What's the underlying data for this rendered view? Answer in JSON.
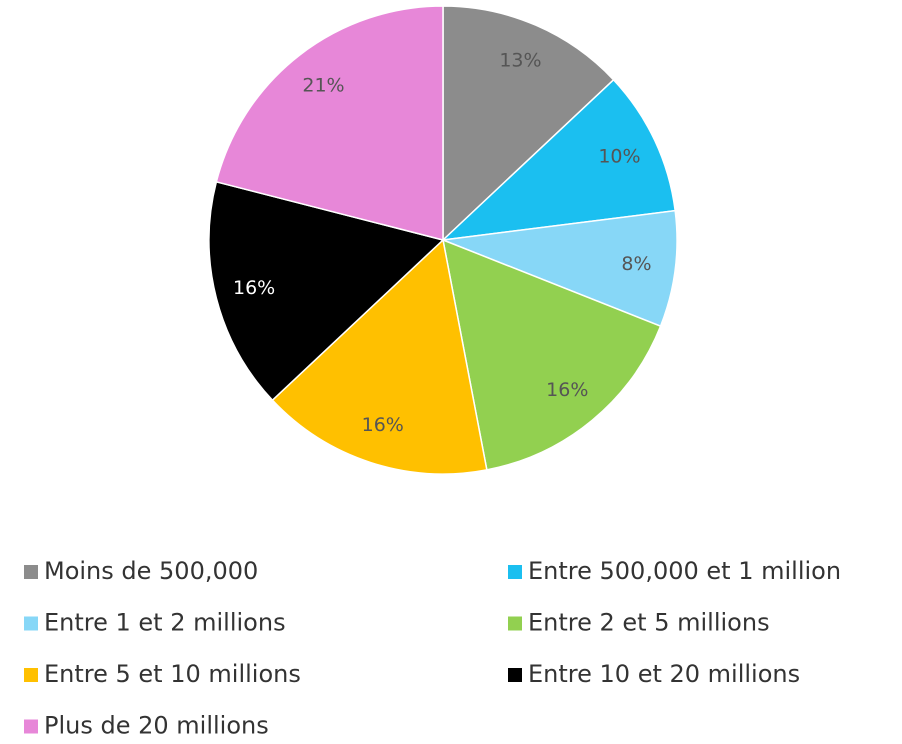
{
  "chart_data": {
    "type": "pie",
    "categories": [
      "Moins de 500,000",
      "Entre 500,000 et 1 million",
      "Entre 1 et 2 millions",
      "Entre 2 et 5 millions",
      "Entre 5 et 10 millions",
      "Entre 10 et 20 millions",
      "Plus de 20 millions"
    ],
    "values": [
      13,
      10,
      8,
      16,
      16,
      16,
      21
    ],
    "value_labels": [
      "13%",
      "10%",
      "8%",
      "16%",
      "16%",
      "16%",
      "21%"
    ],
    "colors": [
      "#8c8c8c",
      "#1bbff0",
      "#87d7f7",
      "#92d050",
      "#ffc000",
      "#000000",
      "#e787d8"
    ],
    "legend": "bottom"
  }
}
